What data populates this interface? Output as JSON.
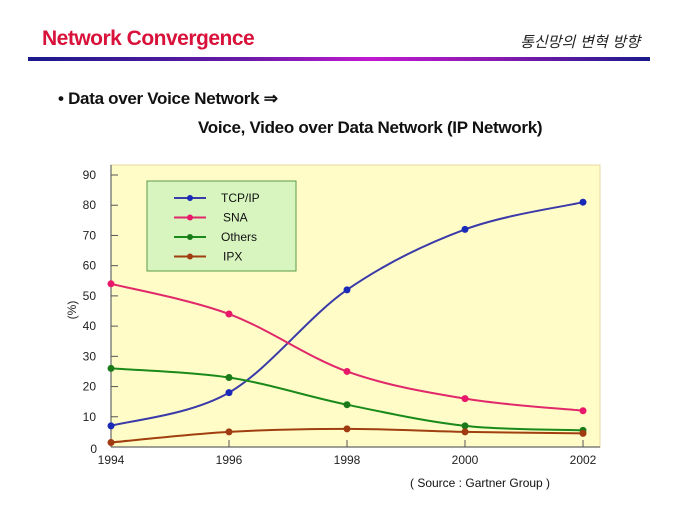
{
  "header": {
    "title": "Network Convergence",
    "subtitle": "통신망의 변혁 방향"
  },
  "body": {
    "bullet_text": "• Data over Voice Network ⇒",
    "line2_text": "Voice, Video over Data Network   (IP Network)",
    "source_text": "( Source : Gartner Group )"
  },
  "chart_data": {
    "type": "line",
    "title": "",
    "xlabel": "",
    "ylabel": "(%)",
    "x": [
      1994,
      1996,
      1998,
      2000,
      2002
    ],
    "x_ticks": [
      "1994",
      "1996",
      "1998",
      "2000",
      "2002"
    ],
    "y_ticks": [
      "0",
      "10",
      "20",
      "30",
      "40",
      "50",
      "60",
      "70",
      "80",
      "90"
    ],
    "ylim": [
      0,
      90
    ],
    "xlim": [
      1994,
      2002
    ],
    "grid": false,
    "legend_position": "top-left",
    "plot_background": "#fffcc8",
    "legend_background": "#d8f5c0",
    "series": [
      {
        "name": "TCP/IP",
        "color": "#3a3aa8",
        "marker_color": "#1a2ab8",
        "values": [
          7,
          18,
          52,
          72,
          81
        ]
      },
      {
        "name": "SNA",
        "color": "#e0286a",
        "marker_color": "#e8186a",
        "values": [
          54,
          44,
          25,
          16,
          12
        ]
      },
      {
        "name": "Others",
        "color": "#1a8a1a",
        "marker_color": "#1a7a1a",
        "values": [
          26,
          23,
          14,
          7,
          5.5
        ]
      },
      {
        "name": "IPX",
        "color": "#a04010",
        "marker_color": "#a03a10",
        "values": [
          1.5,
          5,
          6,
          5,
          4.5
        ]
      }
    ]
  }
}
